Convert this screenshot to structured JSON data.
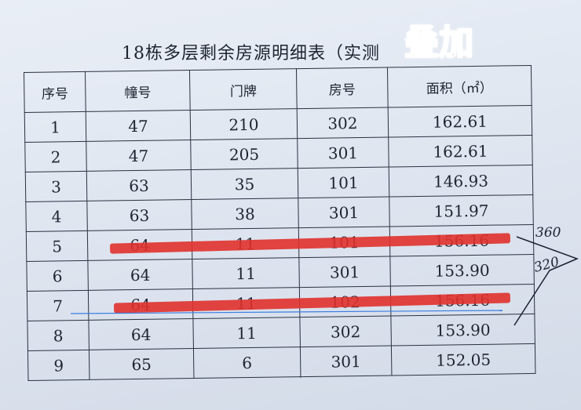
{
  "title": "18栋多层剩余房源明细表（实测",
  "overlay_text": "叠加",
  "headers": [
    "序号",
    "幢号",
    "门牌",
    "房号",
    "面积（㎡）"
  ],
  "rows": [
    [
      "1",
      "47",
      "210",
      "302",
      "162.61"
    ],
    [
      "2",
      "47",
      "205",
      "301",
      "162.61"
    ],
    [
      "3",
      "63",
      "35",
      "101",
      "146.93"
    ],
    [
      "4",
      "63",
      "38",
      "301",
      "151.97"
    ],
    [
      "5",
      "64",
      "11",
      "101",
      "156.16"
    ],
    [
      "6",
      "64",
      "11",
      "301",
      "153.90"
    ],
    [
      "7",
      "64",
      "11",
      "102",
      "156.16"
    ],
    [
      "8",
      "64",
      "11",
      "302",
      "153.90"
    ],
    [
      "9",
      "65",
      "6",
      "301",
      "152.05"
    ]
  ],
  "struck_rows": [
    5,
    7
  ],
  "handwritten": [
    "360",
    "320"
  ],
  "colors": {
    "strike": "#e0312c",
    "paper": "#dde4ef"
  }
}
